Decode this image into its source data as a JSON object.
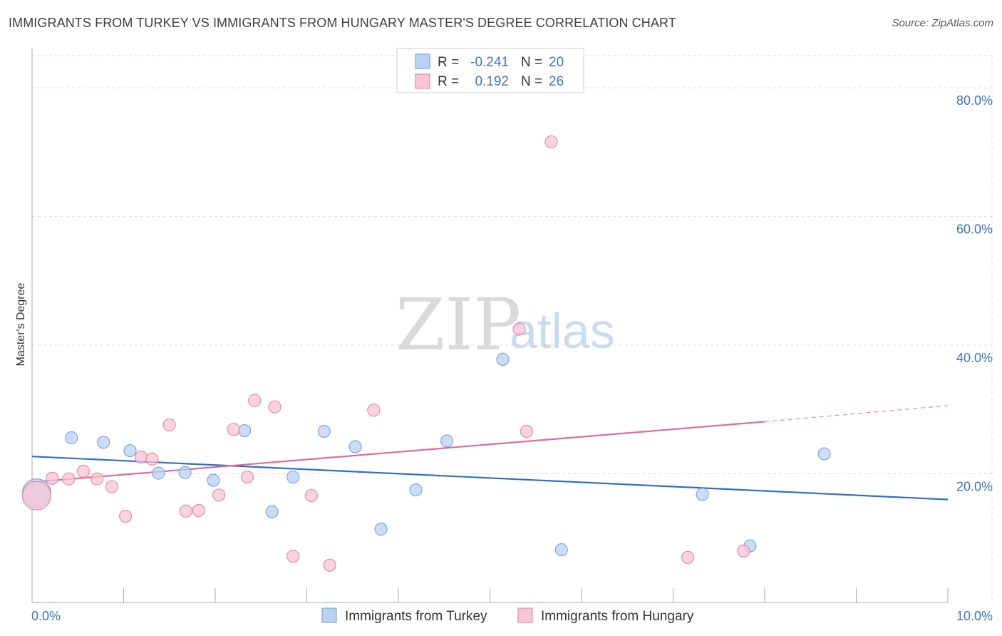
{
  "header": {
    "title": "IMMIGRANTS FROM TURKEY VS IMMIGRANTS FROM HUNGARY MASTER'S DEGREE CORRELATION CHART",
    "source": "Source: ZipAtlas.com"
  },
  "watermark": {
    "zip": "ZIP",
    "atlas": "atlas"
  },
  "colors": {
    "turkey_fill": "#b9d2f3",
    "turkey_stroke": "#7fa6dc",
    "turkey_line": "#2f6fc6",
    "hungary_fill": "#f7c6d4",
    "hungary_stroke": "#e98aa8",
    "hungary_line": "#e06b96",
    "grid": "#dddddd",
    "axis_text": "#3b74c4"
  },
  "legend_top": {
    "rows": [
      {
        "r_label": "R =",
        "r_value": "-0.241",
        "n_label": "N =",
        "n_value": "20"
      },
      {
        "r_label": "R =",
        "r_value": "0.192",
        "n_label": "N =",
        "n_value": "26"
      }
    ]
  },
  "chart_data": {
    "type": "scatter",
    "title": "IMMIGRANTS FROM TURKEY VS IMMIGRANTS FROM HUNGARY MASTER'S DEGREE CORRELATION CHART",
    "xlabel": "",
    "ylabel": "Master's Degree",
    "xlim": [
      0,
      10
    ],
    "ylim": [
      0,
      85
    ],
    "x_tick_labels": [
      "0.0%",
      "10.0%"
    ],
    "y_ticks": [
      20,
      40,
      60,
      80
    ],
    "y_tick_labels": [
      "20.0%",
      "40.0%",
      "60.0%",
      "80.0%"
    ],
    "grid": true,
    "legend_position": "bottom-center",
    "series": [
      {
        "name": "Immigrants from Turkey",
        "points": [
          {
            "x": 0.05,
            "y": 17.0,
            "size": "large"
          },
          {
            "x": 0.43,
            "y": 25.6
          },
          {
            "x": 0.78,
            "y": 24.9
          },
          {
            "x": 1.07,
            "y": 23.6
          },
          {
            "x": 1.38,
            "y": 20.1
          },
          {
            "x": 1.67,
            "y": 20.2
          },
          {
            "x": 1.98,
            "y": 19.0
          },
          {
            "x": 2.32,
            "y": 26.7
          },
          {
            "x": 2.62,
            "y": 14.1
          },
          {
            "x": 2.85,
            "y": 19.5
          },
          {
            "x": 3.19,
            "y": 26.6
          },
          {
            "x": 3.53,
            "y": 24.2
          },
          {
            "x": 3.81,
            "y": 11.4
          },
          {
            "x": 4.19,
            "y": 17.5
          },
          {
            "x": 4.53,
            "y": 25.1
          },
          {
            "x": 5.14,
            "y": 37.8
          },
          {
            "x": 5.78,
            "y": 8.2
          },
          {
            "x": 7.32,
            "y": 16.8
          },
          {
            "x": 7.84,
            "y": 8.8
          },
          {
            "x": 8.65,
            "y": 23.1
          }
        ],
        "trend": {
          "x0": 0,
          "y0": 22.7,
          "x1": 10,
          "y1": 16.0
        }
      },
      {
        "name": "Immigrants from Hungary",
        "points": [
          {
            "x": 0.05,
            "y": 16.6,
            "size": "large"
          },
          {
            "x": 0.22,
            "y": 19.3
          },
          {
            "x": 0.4,
            "y": 19.2
          },
          {
            "x": 0.56,
            "y": 20.4
          },
          {
            "x": 0.71,
            "y": 19.2
          },
          {
            "x": 0.87,
            "y": 18.0
          },
          {
            "x": 1.02,
            "y": 13.4
          },
          {
            "x": 1.19,
            "y": 22.6
          },
          {
            "x": 1.31,
            "y": 22.3
          },
          {
            "x": 1.5,
            "y": 27.6
          },
          {
            "x": 1.68,
            "y": 14.2
          },
          {
            "x": 1.82,
            "y": 14.3
          },
          {
            "x": 2.04,
            "y": 16.7
          },
          {
            "x": 2.2,
            "y": 26.9
          },
          {
            "x": 2.35,
            "y": 19.5
          },
          {
            "x": 2.43,
            "y": 31.4
          },
          {
            "x": 2.65,
            "y": 30.4
          },
          {
            "x": 2.85,
            "y": 7.2
          },
          {
            "x": 3.05,
            "y": 16.6
          },
          {
            "x": 3.25,
            "y": 5.8
          },
          {
            "x": 3.73,
            "y": 29.9
          },
          {
            "x": 5.32,
            "y": 42.5
          },
          {
            "x": 5.4,
            "y": 26.6
          },
          {
            "x": 5.67,
            "y": 71.6
          },
          {
            "x": 7.16,
            "y": 7.0
          },
          {
            "x": 7.77,
            "y": 8.0
          }
        ],
        "trend": {
          "x0": 0,
          "y0": 18.7,
          "x1": 8.0,
          "y1": 28.1
        },
        "trend_dashed": {
          "x0": 8.0,
          "y0": 28.1,
          "x1": 10,
          "y1": 30.6
        }
      }
    ]
  }
}
